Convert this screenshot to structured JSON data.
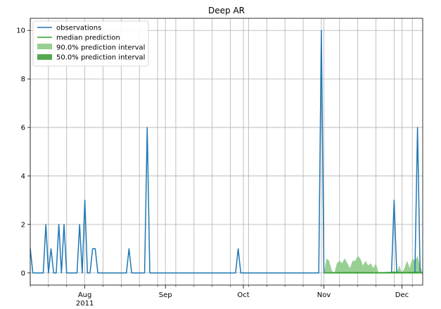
{
  "chart_data": {
    "type": "line",
    "title": "Deep AR",
    "xlabel": "",
    "ylabel": "",
    "x_range": [
      "2011-07-11",
      "2011-12-09"
    ],
    "ylim": [
      -0.5,
      10.5
    ],
    "y_ticks": [
      0,
      2,
      4,
      6,
      8,
      10
    ],
    "x_major_ticks": [
      {
        "date": "2011-08-01",
        "label": "Aug",
        "sublabel": "2011"
      },
      {
        "date": "2011-09-01",
        "label": "Sep",
        "sublabel": ""
      },
      {
        "date": "2011-10-01",
        "label": "Oct",
        "sublabel": ""
      },
      {
        "date": "2011-11-01",
        "label": "Nov",
        "sublabel": ""
      },
      {
        "date": "2011-12-01",
        "label": "Dec",
        "sublabel": ""
      }
    ],
    "x_minor_ticks": [
      "2011-07-11",
      "2011-07-18",
      "2011-07-25",
      "2011-08-08",
      "2011-08-15",
      "2011-08-22",
      "2011-08-29",
      "2011-09-05",
      "2011-09-12",
      "2011-09-19",
      "2011-09-26",
      "2011-10-03",
      "2011-10-10",
      "2011-10-17",
      "2011-10-24",
      "2011-10-31",
      "2011-11-07",
      "2011-11-14",
      "2011-11-21",
      "2011-11-28",
      "2011-12-05"
    ],
    "grid": true,
    "legend_position": "top-left",
    "legend": [
      {
        "label": "observations",
        "kind": "line",
        "color": "#1f77b4"
      },
      {
        "label": "median prediction",
        "kind": "line",
        "color": "#2ca02c"
      },
      {
        "label": "90.0% prediction interval",
        "kind": "area",
        "color": "#98cf92"
      },
      {
        "label": "50.0% prediction interval",
        "kind": "area",
        "color": "#55a84f"
      }
    ],
    "series": [
      {
        "name": "observations",
        "color": "#1f77b4",
        "points": [
          [
            "2011-07-11",
            1
          ],
          [
            "2011-07-12",
            0
          ],
          [
            "2011-07-16",
            0
          ],
          [
            "2011-07-17",
            2
          ],
          [
            "2011-07-18",
            0
          ],
          [
            "2011-07-19",
            1
          ],
          [
            "2011-07-20",
            0
          ],
          [
            "2011-07-21",
            0
          ],
          [
            "2011-07-22",
            2
          ],
          [
            "2011-07-23",
            0
          ],
          [
            "2011-07-24",
            2
          ],
          [
            "2011-07-25",
            0
          ],
          [
            "2011-07-29",
            0
          ],
          [
            "2011-07-30",
            2
          ],
          [
            "2011-07-31",
            0
          ],
          [
            "2011-08-01",
            3
          ],
          [
            "2011-08-02",
            0
          ],
          [
            "2011-08-03",
            0
          ],
          [
            "2011-08-04",
            1
          ],
          [
            "2011-08-05",
            1
          ],
          [
            "2011-08-06",
            0
          ],
          [
            "2011-08-17",
            0
          ],
          [
            "2011-08-18",
            1
          ],
          [
            "2011-08-19",
            0
          ],
          [
            "2011-08-24",
            0
          ],
          [
            "2011-08-25",
            6
          ],
          [
            "2011-08-26",
            0
          ],
          [
            "2011-09-28",
            0
          ],
          [
            "2011-09-29",
            1
          ],
          [
            "2011-09-30",
            0
          ],
          [
            "2011-10-30",
            0
          ],
          [
            "2011-10-31",
            10
          ],
          [
            "2011-11-01",
            0
          ],
          [
            "2011-11-27",
            0
          ],
          [
            "2011-11-28",
            3
          ],
          [
            "2011-11-29",
            0
          ],
          [
            "2011-12-06",
            0
          ],
          [
            "2011-12-07",
            6
          ],
          [
            "2011-12-08",
            0
          ],
          [
            "2011-12-09",
            0
          ]
        ]
      },
      {
        "name": "median prediction",
        "color": "#2ca02c",
        "points": [
          [
            "2011-11-01",
            0
          ],
          [
            "2011-12-09",
            0
          ]
        ]
      }
    ],
    "interval_90": {
      "color": "#98cf92",
      "points": [
        [
          "2011-11-01",
          0.0
        ],
        [
          "2011-11-02",
          0.6
        ],
        [
          "2011-11-03",
          0.5
        ],
        [
          "2011-11-04",
          0.1
        ],
        [
          "2011-11-05",
          0.0
        ],
        [
          "2011-11-06",
          0.4
        ],
        [
          "2011-11-07",
          0.5
        ],
        [
          "2011-11-08",
          0.4
        ],
        [
          "2011-11-09",
          0.6
        ],
        [
          "2011-11-10",
          0.4
        ],
        [
          "2011-11-11",
          0.2
        ],
        [
          "2011-11-12",
          0.5
        ],
        [
          "2011-11-13",
          0.5
        ],
        [
          "2011-11-14",
          0.7
        ],
        [
          "2011-11-15",
          0.6
        ],
        [
          "2011-11-16",
          0.3
        ],
        [
          "2011-11-17",
          0.5
        ],
        [
          "2011-11-18",
          0.3
        ],
        [
          "2011-11-19",
          0.4
        ],
        [
          "2011-11-20",
          0.2
        ],
        [
          "2011-11-21",
          0.4
        ],
        [
          "2011-11-22",
          0.0
        ],
        [
          "2011-11-27",
          0.0
        ],
        [
          "2011-11-28",
          0.1
        ],
        [
          "2011-11-29",
          0.0
        ],
        [
          "2011-11-30",
          0.3
        ],
        [
          "2011-12-01",
          0.0
        ],
        [
          "2011-12-02",
          0.2
        ],
        [
          "2011-12-03",
          0.5
        ],
        [
          "2011-12-04",
          0.2
        ],
        [
          "2011-12-05",
          0.6
        ],
        [
          "2011-12-06",
          0.5
        ],
        [
          "2011-12-07",
          0.7
        ],
        [
          "2011-12-08",
          0.3
        ],
        [
          "2011-12-09",
          0.0
        ]
      ]
    },
    "interval_50": {
      "color": "#55a84f",
      "points": [
        [
          "2011-11-01",
          0.0
        ],
        [
          "2011-11-02",
          0.03
        ],
        [
          "2011-11-14",
          0.04
        ],
        [
          "2011-11-21",
          0.03
        ],
        [
          "2011-11-28",
          0.05
        ],
        [
          "2011-12-03",
          0.04
        ],
        [
          "2011-12-07",
          0.06
        ],
        [
          "2011-12-09",
          0.0
        ]
      ]
    }
  }
}
